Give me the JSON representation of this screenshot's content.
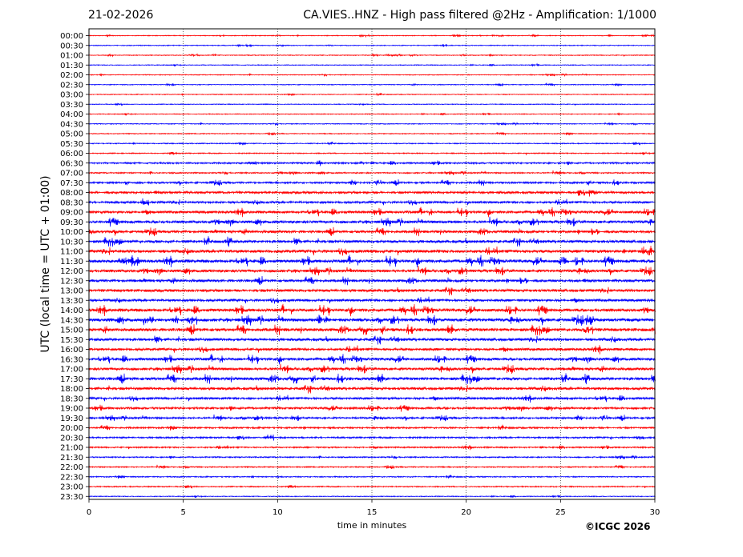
{
  "header": {
    "date": "21-02-2026",
    "title": "CA.VIES..HNZ - High pass filtered @2Hz - Amplification: 1/1000"
  },
  "copyright": "©ICGC 2026",
  "chart_data": {
    "type": "line",
    "title": "CA.VIES..HNZ - High pass filtered @2Hz - Amplification: 1/1000",
    "xlabel": "time in minutes",
    "ylabel": "UTC (local time = UTC + 01:00)",
    "xlim": [
      0,
      30
    ],
    "x_ticks": [
      "0",
      "5",
      "10",
      "15",
      "20",
      "25",
      "30"
    ],
    "grid": "vertical dotted lines at 5, 10, 15, 20, 25",
    "trace_colors": [
      "#ff0000",
      "#0000ff"
    ],
    "rows": [
      "00:00",
      "00:30",
      "01:00",
      "01:30",
      "02:00",
      "02:30",
      "03:00",
      "03:30",
      "04:00",
      "04:30",
      "05:00",
      "05:30",
      "06:00",
      "06:30",
      "07:00",
      "07:30",
      "08:00",
      "08:30",
      "09:00",
      "09:30",
      "10:00",
      "10:30",
      "11:00",
      "11:30",
      "12:00",
      "12:30",
      "13:00",
      "13:30",
      "14:00",
      "14:30",
      "15:00",
      "15:30",
      "16:00",
      "16:30",
      "17:00",
      "17:30",
      "18:00",
      "18:30",
      "19:00",
      "19:30",
      "20:00",
      "20:30",
      "21:00",
      "21:30",
      "22:00",
      "22:30",
      "23:00",
      "23:30"
    ],
    "activity": [
      0.05,
      0.06,
      0.05,
      0.05,
      0.06,
      0.06,
      0.05,
      0.05,
      0.06,
      0.07,
      0.08,
      0.1,
      0.12,
      0.28,
      0.2,
      0.35,
      0.5,
      0.45,
      0.55,
      0.6,
      0.55,
      0.62,
      0.7,
      0.72,
      0.6,
      0.55,
      0.6,
      0.5,
      0.7,
      0.75,
      0.7,
      0.62,
      0.55,
      0.58,
      0.6,
      0.65,
      0.6,
      0.45,
      0.42,
      0.35,
      0.3,
      0.28,
      0.22,
      0.18,
      0.16,
      0.15,
      0.14,
      0.06
    ]
  }
}
